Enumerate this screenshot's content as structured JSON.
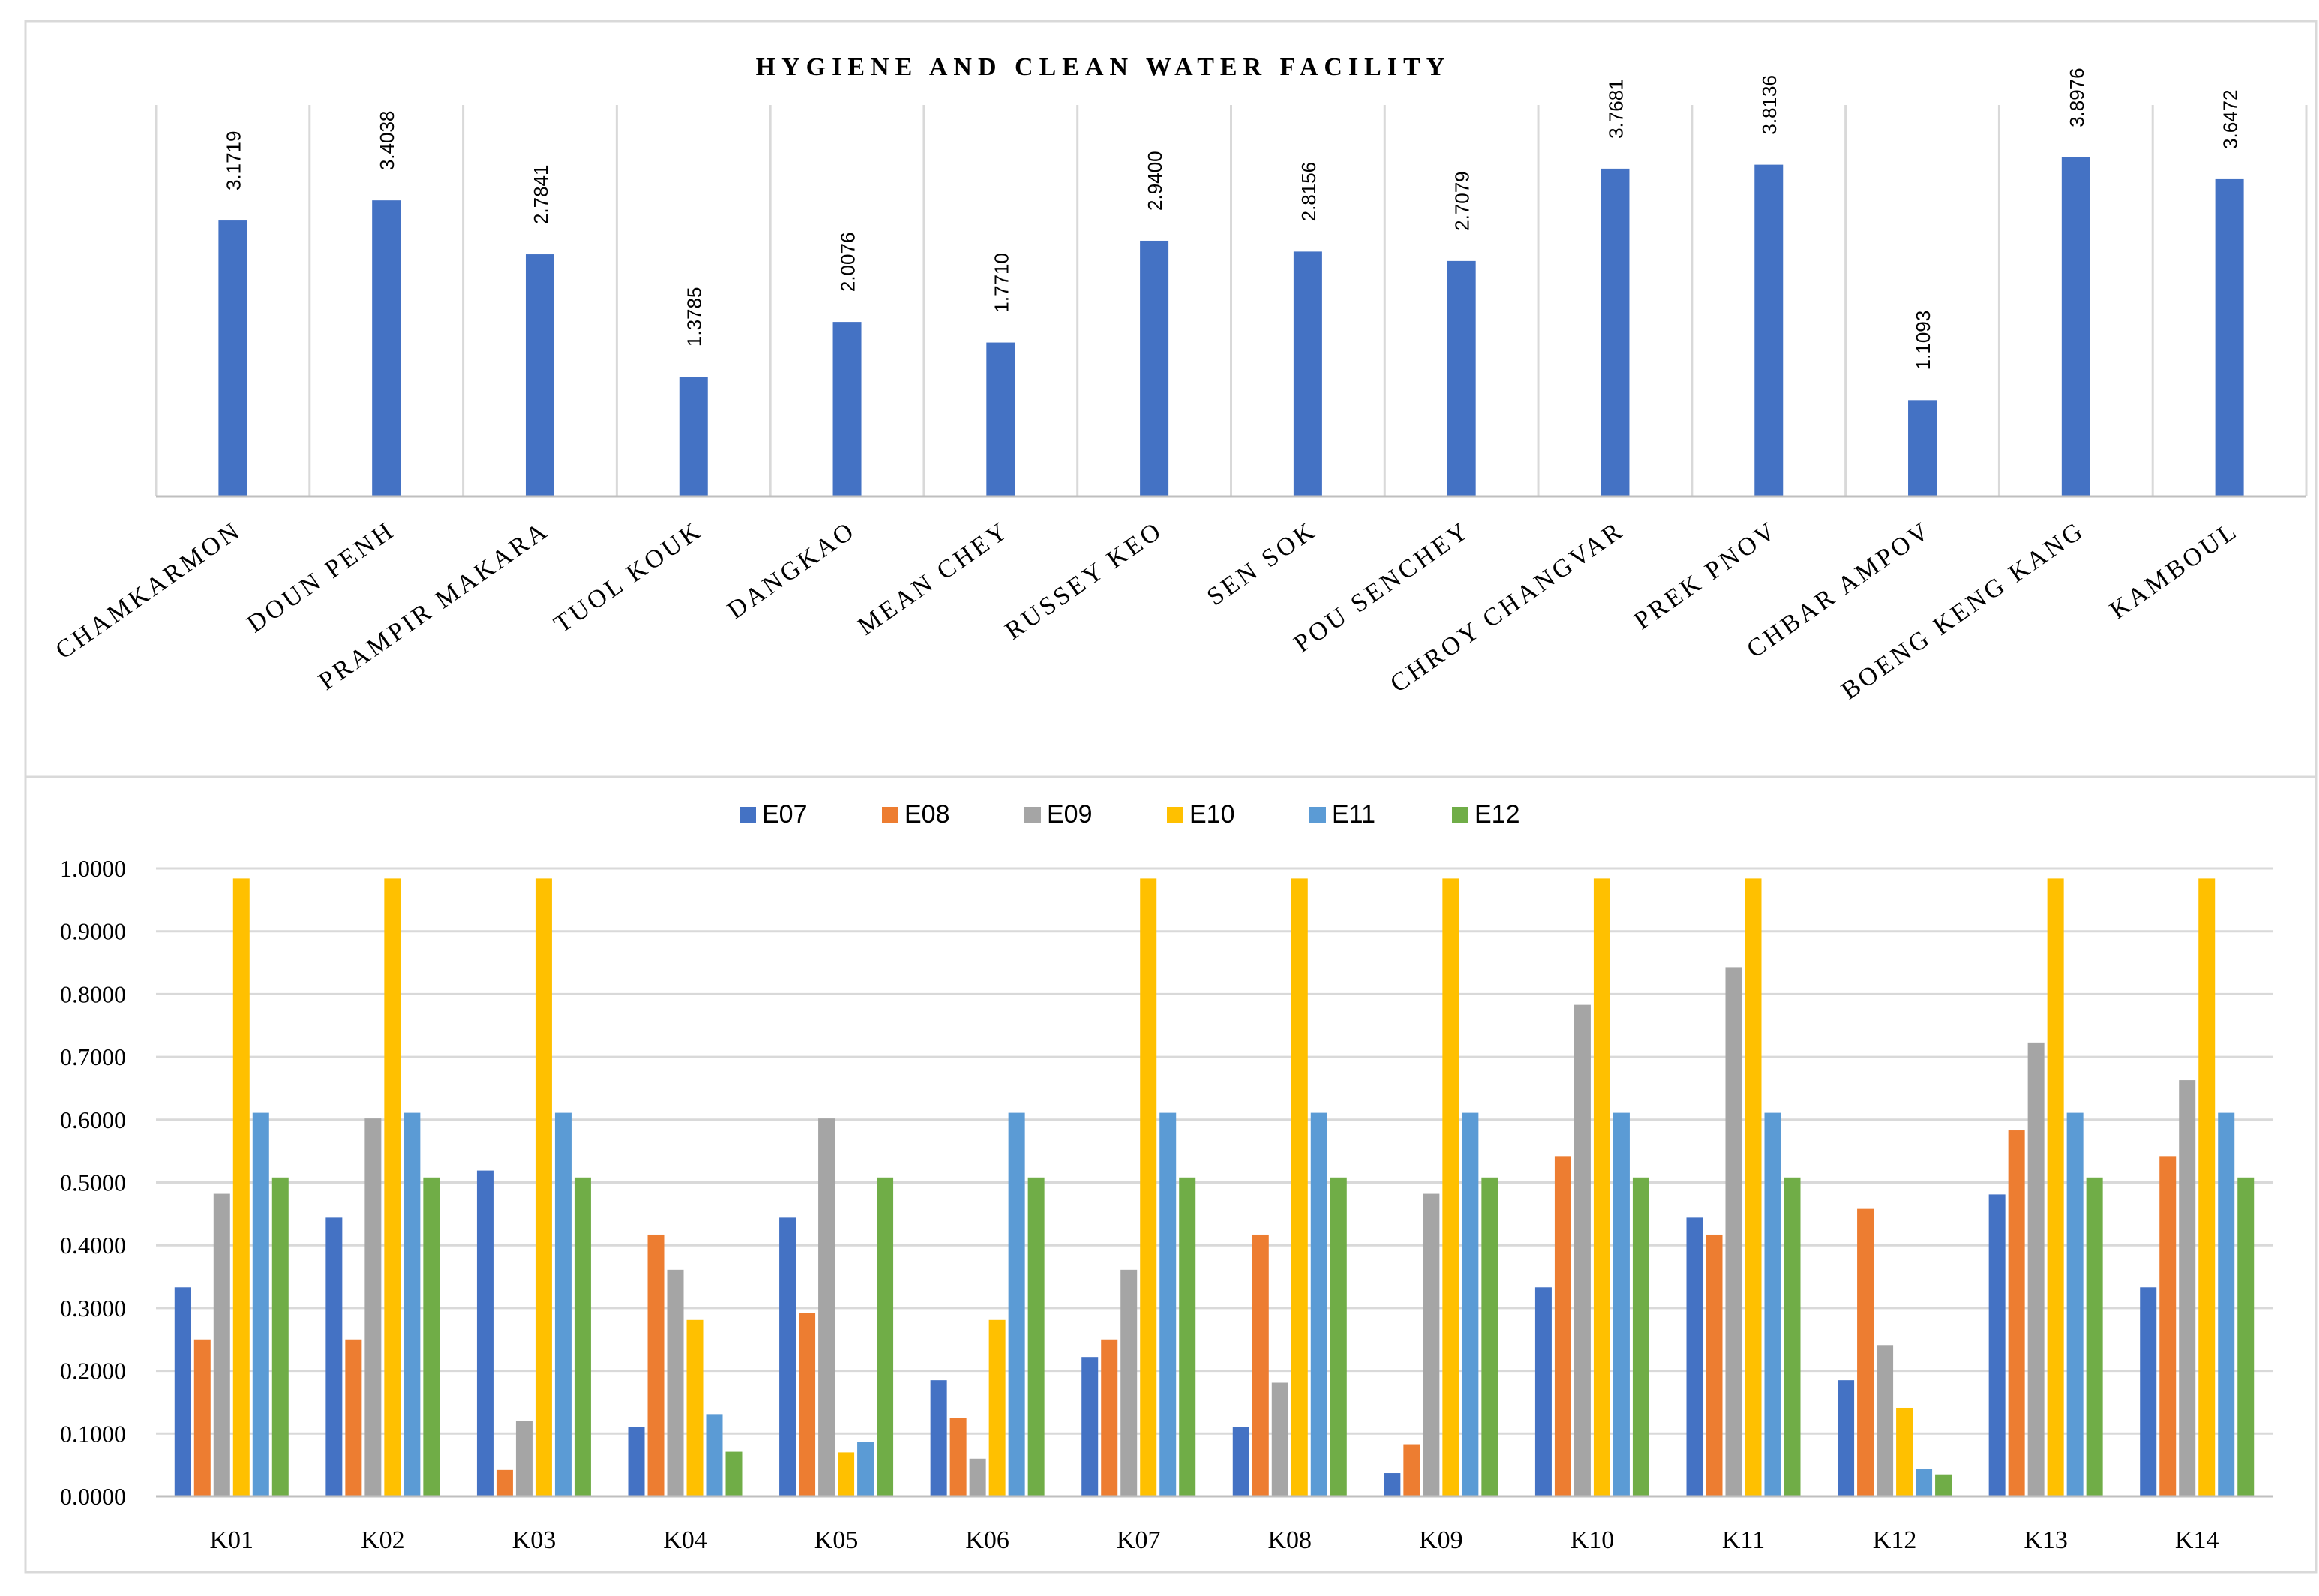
{
  "chart_data": [
    {
      "type": "bar",
      "title": "HYGIENE AND CLEAN WATER FACILITY",
      "categories": [
        "CHAMKARMON",
        "DOUN PENH",
        "PRAMPIR MAKARA",
        "TUOL KOUK",
        "DANGKAO",
        "MEAN CHEY",
        "RUSSEY KEO",
        "SEN SOK",
        "POU SENCHEY",
        "CHROY CHANGVAR",
        "PREK PNOV",
        "CHBAR AMPOV",
        "BOENG KENG KANG",
        "KAMBOUL"
      ],
      "values": [
        3.1719,
        3.4038,
        2.7841,
        1.3785,
        2.0076,
        1.771,
        2.94,
        2.8156,
        2.7079,
        3.7681,
        3.8136,
        1.1093,
        3.8976,
        3.6472
      ],
      "value_labels": [
        "3.1719",
        "3.4038",
        "2.7841",
        "1.3785",
        "2.0076",
        "1.7710",
        "2.9400",
        "2.8156",
        "2.7079",
        "3.7681",
        "3.8136",
        "1.1093",
        "3.8976",
        "3.6472"
      ],
      "color": "#4472C4",
      "ylim": [
        0,
        4.5
      ],
      "grid": "vertical"
    },
    {
      "type": "bar",
      "categories": [
        "K01",
        "K02",
        "K03",
        "K04",
        "K05",
        "K06",
        "K07",
        "K08",
        "K09",
        "K10",
        "K11",
        "K12",
        "K13",
        "K14"
      ],
      "series": [
        {
          "name": "E07",
          "color": "#4472C4",
          "values": [
            0.333,
            0.444,
            0.519,
            0.111,
            0.444,
            0.185,
            0.222,
            0.111,
            0.037,
            0.333,
            0.444,
            0.185,
            0.481,
            0.333
          ]
        },
        {
          "name": "E08",
          "color": "#ED7D31",
          "values": [
            0.25,
            0.25,
            0.042,
            0.417,
            0.292,
            0.125,
            0.25,
            0.417,
            0.083,
            0.542,
            0.417,
            0.458,
            0.583,
            0.542
          ]
        },
        {
          "name": "E09",
          "color": "#A5A5A5",
          "values": [
            0.482,
            0.602,
            0.12,
            0.361,
            0.602,
            0.06,
            0.361,
            0.181,
            0.482,
            0.783,
            0.843,
            0.241,
            0.723,
            0.663
          ]
        },
        {
          "name": "E10",
          "color": "#FFC000",
          "values": [
            0.984,
            0.984,
            0.984,
            0.281,
            0.07,
            0.281,
            0.984,
            0.984,
            0.984,
            0.984,
            0.984,
            0.141,
            0.984,
            0.984
          ]
        },
        {
          "name": "E11",
          "color": "#5B9BD5",
          "values": [
            0.611,
            0.611,
            0.611,
            0.131,
            0.087,
            0.611,
            0.611,
            0.611,
            0.611,
            0.611,
            0.611,
            0.044,
            0.611,
            0.611
          ]
        },
        {
          "name": "E12",
          "color": "#70AD47",
          "values": [
            0.508,
            0.508,
            0.508,
            0.071,
            0.508,
            0.508,
            0.508,
            0.508,
            0.508,
            0.508,
            0.508,
            0.035,
            0.508,
            0.508
          ]
        }
      ],
      "ylim": [
        0,
        1
      ],
      "yticks": [
        "0.0000",
        "0.1000",
        "0.2000",
        "0.3000",
        "0.4000",
        "0.5000",
        "0.6000",
        "0.7000",
        "0.8000",
        "0.9000",
        "1.0000"
      ],
      "legend": "top-center",
      "grid": "horizontal"
    }
  ]
}
